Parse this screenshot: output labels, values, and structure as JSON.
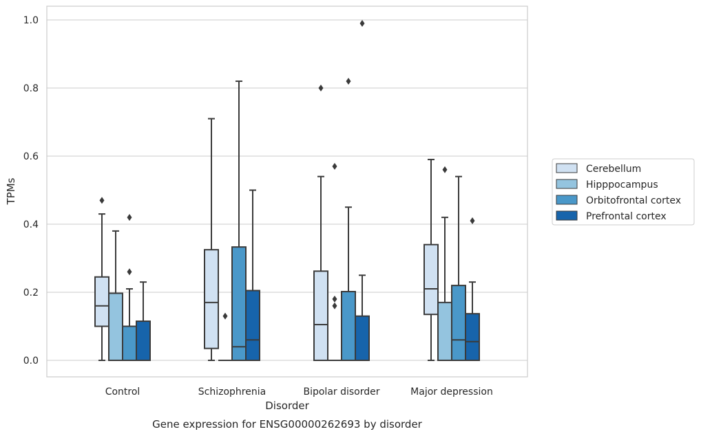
{
  "chart_data": {
    "type": "boxplot",
    "xlabel": "Disorder",
    "ylabel": "TPMs",
    "caption": "Gene expression for ENSG00000262693 by disorder",
    "ylim": [
      -0.05,
      1.04
    ],
    "yticks": [
      "0.0",
      "0.2",
      "0.4",
      "0.6",
      "0.8",
      "1.0"
    ],
    "grid": "horizontal",
    "legend_position": "right",
    "categories": [
      "Control",
      "Schizophrenia",
      "Bipolar disorder",
      "Major depression"
    ],
    "series": [
      {
        "name": "Cerebellum",
        "color": "#d0e1f2",
        "boxes": [
          {
            "q1": 0.1,
            "median": 0.16,
            "q3": 0.245,
            "low": 0.0,
            "high": 0.43,
            "outliers": [
              0.47
            ]
          },
          {
            "q1": 0.035,
            "median": 0.17,
            "q3": 0.325,
            "low": 0.0,
            "high": 0.71,
            "outliers": []
          },
          {
            "q1": 0.0,
            "median": 0.105,
            "q3": 0.262,
            "low": 0.0,
            "high": 0.54,
            "outliers": [
              0.8
            ]
          },
          {
            "q1": 0.135,
            "median": 0.21,
            "q3": 0.34,
            "low": 0.0,
            "high": 0.59,
            "outliers": []
          }
        ]
      },
      {
        "name": "Hipppocampus",
        "color": "#94c4df",
        "boxes": [
          {
            "q1": 0.0,
            "median": 0.0,
            "q3": 0.197,
            "low": 0.0,
            "high": 0.38,
            "outliers": []
          },
          {
            "q1": 0.0,
            "median": 0.0,
            "q3": 0.0,
            "low": 0.0,
            "high": 0.0,
            "outliers": [
              0.13
            ]
          },
          {
            "q1": 0.0,
            "median": 0.0,
            "q3": 0.0,
            "low": 0.0,
            "high": 0.0,
            "outliers": [
              0.16,
              0.18,
              0.57
            ]
          },
          {
            "q1": 0.0,
            "median": 0.0,
            "q3": 0.17,
            "low": 0.0,
            "high": 0.42,
            "outliers": [
              0.56
            ]
          }
        ]
      },
      {
        "name": "Orbitofrontal cortex",
        "color": "#4a98c9",
        "boxes": [
          {
            "q1": 0.0,
            "median": 0.1,
            "q3": 0.1,
            "low": 0.0,
            "high": 0.21,
            "outliers": [
              0.26,
              0.42
            ]
          },
          {
            "q1": 0.0,
            "median": 0.04,
            "q3": 0.333,
            "low": 0.0,
            "high": 0.82,
            "outliers": []
          },
          {
            "q1": 0.0,
            "median": 0.0,
            "q3": 0.202,
            "low": 0.0,
            "high": 0.45,
            "outliers": [
              0.82
            ]
          },
          {
            "q1": 0.0,
            "median": 0.06,
            "q3": 0.22,
            "low": 0.0,
            "high": 0.54,
            "outliers": []
          }
        ]
      },
      {
        "name": "Prefrontal cortex",
        "color": "#1764ab",
        "boxes": [
          {
            "q1": 0.0,
            "median": 0.0,
            "q3": 0.115,
            "low": 0.0,
            "high": 0.23,
            "outliers": []
          },
          {
            "q1": 0.0,
            "median": 0.06,
            "q3": 0.205,
            "low": 0.0,
            "high": 0.5,
            "outliers": []
          },
          {
            "q1": 0.0,
            "median": 0.0,
            "q3": 0.13,
            "low": 0.0,
            "high": 0.25,
            "outliers": [
              0.99
            ]
          },
          {
            "q1": 0.0,
            "median": 0.055,
            "q3": 0.137,
            "low": 0.0,
            "high": 0.23,
            "outliers": [
              0.41
            ]
          }
        ]
      }
    ]
  }
}
